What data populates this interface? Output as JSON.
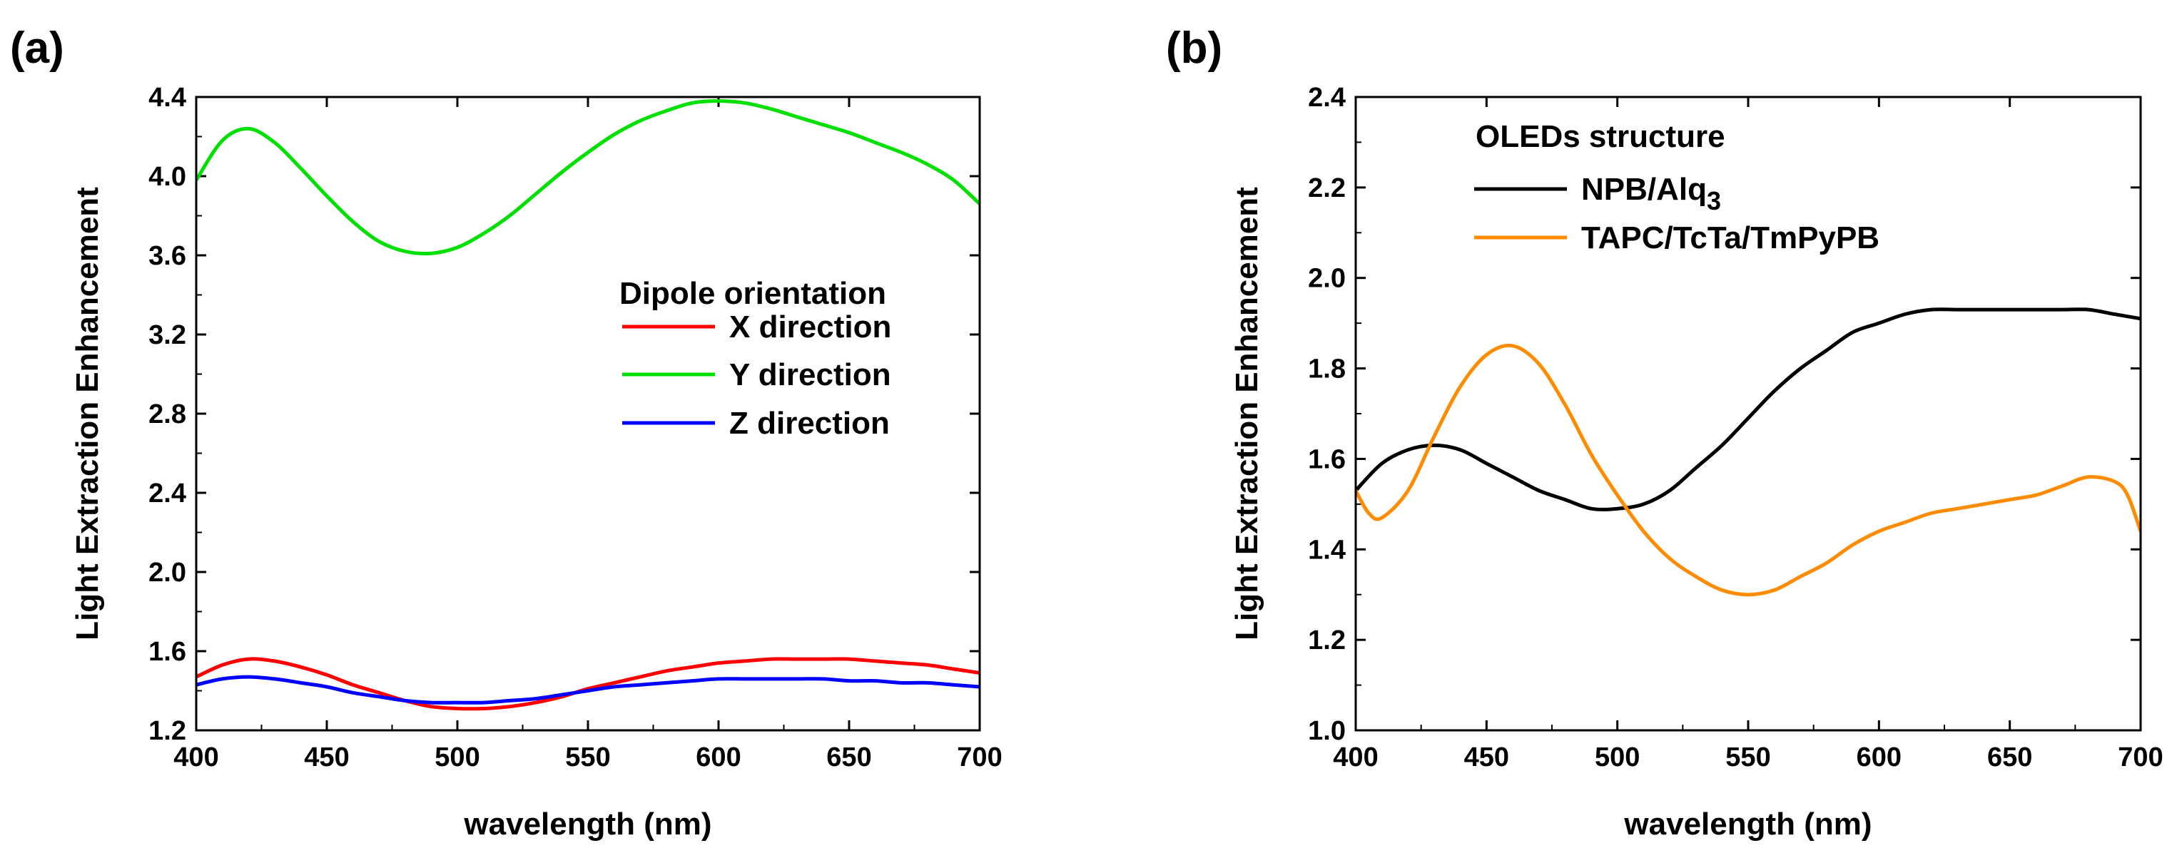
{
  "chart_data": [
    {
      "panel_label": "(a)",
      "type": "line",
      "xlabel": "wavelength (nm)",
      "ylabel": "Light Extraction Enhancement",
      "xlim": [
        400,
        700
      ],
      "ylim": [
        1.2,
        4.4
      ],
      "xticks": [
        400,
        450,
        500,
        550,
        600,
        650,
        700
      ],
      "yticks": [
        1.2,
        1.6,
        2.0,
        2.4,
        2.8,
        3.2,
        3.6,
        4.0,
        4.4
      ],
      "ytick_decimals": 1,
      "legend_title": "Dipole orientation",
      "legend_position": "center-right",
      "series": [
        {
          "name": "X direction",
          "color": "#ff0000",
          "x": [
            400,
            410,
            420,
            430,
            440,
            450,
            460,
            470,
            480,
            490,
            500,
            510,
            520,
            530,
            540,
            550,
            560,
            570,
            580,
            590,
            600,
            610,
            620,
            630,
            640,
            650,
            660,
            670,
            680,
            690,
            700
          ],
          "y": [
            1.47,
            1.53,
            1.56,
            1.55,
            1.52,
            1.48,
            1.43,
            1.39,
            1.35,
            1.32,
            1.31,
            1.31,
            1.32,
            1.34,
            1.37,
            1.41,
            1.44,
            1.47,
            1.5,
            1.52,
            1.54,
            1.55,
            1.56,
            1.56,
            1.56,
            1.56,
            1.55,
            1.54,
            1.53,
            1.51,
            1.49
          ]
        },
        {
          "name": "Y direction",
          "color": "#00e000",
          "x": [
            400,
            410,
            420,
            430,
            440,
            450,
            460,
            470,
            480,
            490,
            500,
            510,
            520,
            530,
            540,
            550,
            560,
            570,
            580,
            590,
            600,
            610,
            620,
            630,
            640,
            650,
            660,
            670,
            680,
            690,
            700
          ],
          "y": [
            3.98,
            4.18,
            4.24,
            4.17,
            4.04,
            3.9,
            3.77,
            3.67,
            3.62,
            3.61,
            3.64,
            3.71,
            3.8,
            3.91,
            4.02,
            4.12,
            4.21,
            4.28,
            4.33,
            4.37,
            4.38,
            4.37,
            4.34,
            4.3,
            4.26,
            4.22,
            4.17,
            4.12,
            4.06,
            3.98,
            3.86
          ]
        },
        {
          "name": "Z direction",
          "color": "#0000ff",
          "x": [
            400,
            410,
            420,
            430,
            440,
            450,
            460,
            470,
            480,
            490,
            500,
            510,
            520,
            530,
            540,
            550,
            560,
            570,
            580,
            590,
            600,
            610,
            620,
            630,
            640,
            650,
            660,
            670,
            680,
            690,
            700
          ],
          "y": [
            1.43,
            1.46,
            1.47,
            1.46,
            1.44,
            1.42,
            1.39,
            1.37,
            1.35,
            1.34,
            1.34,
            1.34,
            1.35,
            1.36,
            1.38,
            1.4,
            1.42,
            1.43,
            1.44,
            1.45,
            1.46,
            1.46,
            1.46,
            1.46,
            1.46,
            1.45,
            1.45,
            1.44,
            1.44,
            1.43,
            1.42
          ]
        }
      ]
    },
    {
      "panel_label": "(b)",
      "type": "line",
      "xlabel": "wavelength (nm)",
      "ylabel": "Light Extraction Enhancement",
      "xlim": [
        400,
        700
      ],
      "ylim": [
        1.0,
        2.4
      ],
      "xticks": [
        400,
        450,
        500,
        550,
        600,
        650,
        700
      ],
      "yticks": [
        1.0,
        1.2,
        1.4,
        1.6,
        1.8,
        2.0,
        2.2,
        2.4
      ],
      "ytick_decimals": 1,
      "legend_title": "OLEDs structure",
      "legend_position": "top-left",
      "series": [
        {
          "name": "NPB/Alq",
          "name_subscript": "3",
          "color": "#000000",
          "x": [
            400,
            410,
            420,
            430,
            440,
            450,
            460,
            470,
            480,
            490,
            500,
            510,
            520,
            530,
            540,
            550,
            560,
            570,
            580,
            590,
            600,
            610,
            620,
            630,
            640,
            650,
            660,
            670,
            680,
            690,
            700
          ],
          "y": [
            1.53,
            1.59,
            1.62,
            1.63,
            1.62,
            1.59,
            1.56,
            1.53,
            1.51,
            1.49,
            1.49,
            1.5,
            1.53,
            1.58,
            1.63,
            1.69,
            1.75,
            1.8,
            1.84,
            1.88,
            1.9,
            1.92,
            1.93,
            1.93,
            1.93,
            1.93,
            1.93,
            1.93,
            1.93,
            1.92,
            1.91
          ]
        },
        {
          "name": "TAPC/TcTa/TmPyPB",
          "color": "#ff8c00",
          "x": [
            400,
            405,
            410,
            420,
            430,
            440,
            450,
            460,
            470,
            480,
            490,
            500,
            510,
            520,
            530,
            540,
            550,
            560,
            570,
            580,
            590,
            600,
            610,
            620,
            630,
            640,
            650,
            660,
            670,
            680,
            690,
            695,
            700
          ],
          "y": [
            1.53,
            1.48,
            1.47,
            1.53,
            1.65,
            1.76,
            1.83,
            1.85,
            1.81,
            1.72,
            1.61,
            1.52,
            1.44,
            1.38,
            1.34,
            1.31,
            1.3,
            1.31,
            1.34,
            1.37,
            1.41,
            1.44,
            1.46,
            1.48,
            1.49,
            1.5,
            1.51,
            1.52,
            1.54,
            1.56,
            1.55,
            1.52,
            1.44
          ]
        }
      ]
    }
  ]
}
